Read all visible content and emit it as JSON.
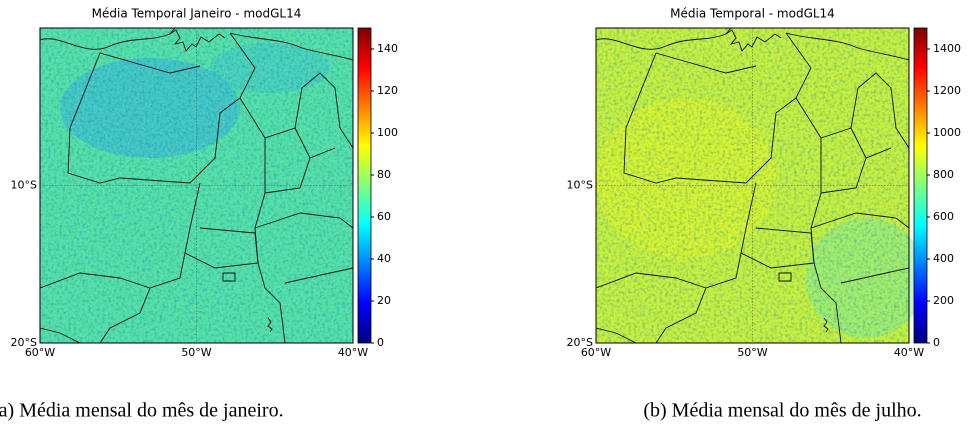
{
  "chart_data": [
    {
      "type": "heatmap",
      "title": "Média Temporal Janeiro - modGL14",
      "caption": "(a) Média mensal do mês de janeiro.",
      "xlim": [
        -60,
        -40
      ],
      "ylim": [
        -20,
        0
      ],
      "xticks": [
        {
          "value": -60,
          "label": "60°W"
        },
        {
          "value": -50,
          "label": "50°W"
        },
        {
          "value": -40,
          "label": "40°W"
        }
      ],
      "yticks": [
        {
          "value": -20,
          "label": "20°S"
        },
        {
          "value": -10,
          "label": "10°S"
        }
      ],
      "colormap": "jet",
      "color": "#52e0a8",
      "clim": [
        0,
        150
      ],
      "cticks": [
        0,
        20,
        40,
        60,
        80,
        100,
        120,
        140
      ]
    },
    {
      "type": "heatmap",
      "title": "Média Temporal - modGL14",
      "caption": "(b) Média mensal do mês de julho.",
      "xlim": [
        -60,
        -40
      ],
      "ylim": [
        -20,
        0
      ],
      "xticks": [
        {
          "value": -60,
          "label": "60°W"
        },
        {
          "value": -50,
          "label": "50°W"
        },
        {
          "value": -40,
          "label": "40°W"
        }
      ],
      "yticks": [
        {
          "value": -20,
          "label": "20°S"
        },
        {
          "value": -10,
          "label": "10°S"
        }
      ],
      "colormap": "jet",
      "color": "#c6f03c",
      "clim": [
        0,
        1500
      ],
      "cticks": [
        0,
        200,
        400,
        600,
        800,
        1000,
        1200,
        1400
      ]
    }
  ]
}
